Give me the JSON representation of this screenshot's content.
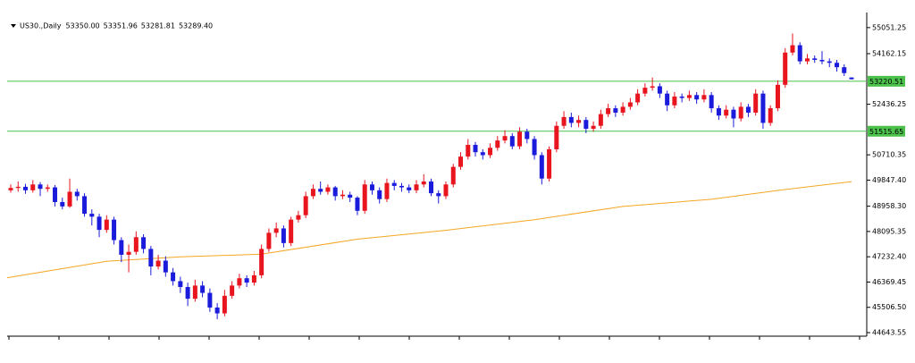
{
  "chart_data": {
    "type": "candlestick",
    "title": "US30.,Daily",
    "last_labels": [
      "53350.00",
      "53351.96",
      "53281.81",
      "53289.40"
    ],
    "up_color": "#e8141e",
    "down_color": "#1b1bdc",
    "ylim": [
      44553,
      55444
    ],
    "yticks": [
      55051.25,
      54162.15,
      52436.25,
      50710.35,
      {
        "value": 49847.4,
        "label": "49847.40"
      },
      {
        "value": 48958.3,
        "label": "48958.30"
      },
      48095.35,
      {
        "value": 47232.4,
        "label": "47232.40"
      },
      46369.45,
      {
        "value": 45506.5,
        "label": "45506.50"
      },
      44643.55
    ],
    "hlines": {
      "color": "#4cc14c",
      "values": [
        53220.51,
        51515.65
      ]
    },
    "open": [
      49500,
      49580,
      49620,
      49500,
      49700,
      49550,
      49600,
      49100,
      48950,
      49450,
      49300,
      48700,
      48600,
      48150,
      48500,
      47800,
      47300,
      47400,
      47900,
      47500,
      46900,
      47100,
      46700,
      46400,
      46200,
      45800,
      46250,
      46000,
      45500,
      45300,
      45900,
      46250,
      46500,
      46350,
      46600,
      47500,
      48050,
      48200,
      47700,
      48500,
      48650,
      49300,
      49550,
      49450,
      49600,
      49300,
      49350,
      49250,
      48800,
      49700,
      49500,
      49200,
      49750,
      49650,
      49600,
      49500,
      49700,
      49800,
      49400,
      49300,
      49700,
      50300,
      50650,
      51050,
      50800,
      50700,
      50950,
      51200,
      51350,
      51000,
      51500,
      51250,
      50700,
      49900,
      50900,
      51700,
      52000,
      51800,
      51900,
      51600,
      51700,
      52100,
      52300,
      52150,
      52350,
      52500,
      52800,
      53000,
      53050,
      52800,
      52400,
      52700,
      52650,
      52750,
      52600,
      52750,
      52300,
      52050,
      52250,
      51950,
      52350,
      52150,
      52800,
      51800,
      52300,
      53100,
      54200,
      54450,
      53900,
      54000,
      53950,
      53900,
      53850,
      53700,
      53350
    ],
    "high": [
      49700,
      49800,
      49720,
      49850,
      49780,
      49700,
      49680,
      49250,
      49900,
      49550,
      49400,
      48850,
      48700,
      48650,
      48600,
      47900,
      47650,
      48100,
      48000,
      47600,
      47300,
      47250,
      46850,
      46550,
      46350,
      46450,
      46400,
      46150,
      45650,
      46100,
      46400,
      46650,
      46600,
      46750,
      47650,
      48200,
      48400,
      48300,
      48600,
      48800,
      49450,
      49700,
      49800,
      49700,
      49650,
      49500,
      49450,
      49300,
      49850,
      49800,
      49600,
      49900,
      49850,
      49750,
      49700,
      49850,
      50050,
      49900,
      49500,
      49800,
      50400,
      50800,
      51250,
      51150,
      50900,
      51100,
      51350,
      51550,
      51450,
      51650,
      51600,
      51350,
      50800,
      51000,
      51850,
      52200,
      52150,
      52050,
      52000,
      51850,
      52250,
      52450,
      52400,
      52500,
      52650,
      52950,
      53150,
      53350,
      53150,
      52900,
      52850,
      52800,
      52900,
      52850,
      52950,
      52850,
      52400,
      52400,
      52350,
      52500,
      52450,
      52950,
      52900,
      52400,
      53250,
      54350,
      54850,
      54550,
      54150,
      54100,
      54250,
      54000,
      53950,
      53800,
      53351.96
    ],
    "low": [
      49420,
      49450,
      49380,
      49420,
      49300,
      49450,
      48950,
      48850,
      48900,
      49150,
      48600,
      48300,
      47900,
      48050,
      47650,
      47050,
      46700,
      47300,
      47350,
      46600,
      46800,
      46550,
      46250,
      46000,
      45550,
      45700,
      45850,
      45350,
      45100,
      45200,
      45800,
      46150,
      46200,
      46250,
      46500,
      47400,
      47900,
      47550,
      47600,
      48400,
      48550,
      49200,
      49350,
      49350,
      49150,
      49200,
      49100,
      48650,
      48700,
      49350,
      49050,
      49100,
      49500,
      49450,
      49400,
      49400,
      49600,
      49300,
      49050,
      49200,
      49600,
      50200,
      50550,
      50650,
      50550,
      50600,
      50850,
      51100,
      50900,
      50900,
      51100,
      50550,
      49700,
      49800,
      50800,
      51600,
      51650,
      51650,
      51450,
      51500,
      51600,
      52000,
      52000,
      52050,
      52250,
      52400,
      52700,
      52900,
      52650,
      52200,
      52300,
      52500,
      52550,
      52450,
      52500,
      52150,
      51900,
      51950,
      51650,
      51850,
      52000,
      52050,
      51600,
      51700,
      52200,
      53000,
      54100,
      53800,
      53800,
      53850,
      53800,
      53700,
      53550,
      53400,
      53281.81
    ],
    "close": [
      49580,
      49620,
      49500,
      49700,
      49550,
      49600,
      49100,
      48950,
      49450,
      49300,
      48700,
      48600,
      48150,
      48500,
      47800,
      47300,
      47400,
      47900,
      47500,
      46900,
      47100,
      46700,
      46400,
      46200,
      45800,
      46250,
      46000,
      45500,
      45300,
      45900,
      46250,
      46500,
      46350,
      46600,
      47500,
      48050,
      48200,
      47700,
      48500,
      48650,
      49300,
      49550,
      49450,
      49600,
      49300,
      49350,
      49250,
      48800,
      49700,
      49500,
      49200,
      49750,
      49650,
      49600,
      49500,
      49700,
      49800,
      49400,
      49300,
      49700,
      50300,
      50650,
      51050,
      50800,
      50700,
      50950,
      51200,
      51350,
      51000,
      51500,
      51250,
      50700,
      49900,
      50900,
      51700,
      52000,
      51800,
      51900,
      51600,
      51700,
      52100,
      52300,
      52150,
      52350,
      52500,
      52800,
      53000,
      53050,
      52800,
      52400,
      52700,
      52650,
      52750,
      52600,
      52750,
      52300,
      52050,
      52250,
      51950,
      52350,
      52150,
      52800,
      51800,
      52300,
      53100,
      54200,
      54450,
      53900,
      54000,
      53950,
      53900,
      53850,
      53700,
      53500,
      53289.4
    ],
    "ma": {
      "color": "#f5a623",
      "x": [
        0,
        13,
        23,
        34,
        47,
        59,
        71,
        83,
        95,
        104,
        114
      ],
      "values": [
        46535,
        47078,
        47229,
        47320,
        47833,
        48135,
        48498,
        48950,
        49192,
        49494,
        49796
      ]
    }
  }
}
